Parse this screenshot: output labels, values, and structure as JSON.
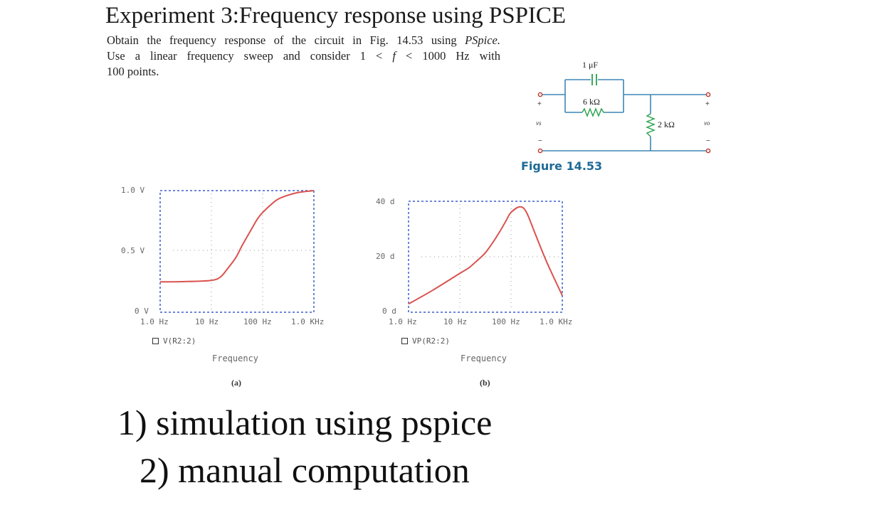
{
  "title": "Experiment 3:Frequency response using PSPICE",
  "problem": {
    "line1": "Obtain the frequency response of the circuit in Fig. 14.53 using ",
    "line1_em": "PSpice.",
    "line2a": "Use a linear frequency sweep and consider 1 < ",
    "line2_f": "f",
    "line2b": " < 1000 Hz with",
    "line3": "100 points."
  },
  "figure": {
    "caption": "Figure 14.53",
    "capacitor_label": "1 μF",
    "resistor_series_label": "6 kΩ",
    "resistor_shunt_label": "2 kΩ",
    "input_label": "vs",
    "output_label": "vo",
    "plus": "+",
    "minus": "−"
  },
  "plots": [
    {
      "id": "a",
      "sublabel": "(a)",
      "legend": "V(R2:2)",
      "xlabel": "Frequency",
      "y_ticks": [
        "1.0 V",
        "0.5 V",
        "0 V"
      ],
      "x_ticks": [
        "1.0 Hz",
        "10 Hz",
        "100 Hz",
        "1.0 KHz"
      ]
    },
    {
      "id": "b",
      "sublabel": "(b)",
      "legend": "VP(R2:2)",
      "xlabel": "Frequency",
      "y_ticks": [
        "40 d",
        "20 d",
        "0 d"
      ],
      "x_ticks": [
        "1.0 Hz",
        "10 Hz",
        "100 Hz",
        "1.0 KHz"
      ]
    }
  ],
  "chart_data": [
    {
      "type": "line",
      "title": "",
      "xlabel": "Frequency",
      "ylabel": "",
      "x_scale": "log",
      "xlim": [
        1,
        1000
      ],
      "ylim": [
        0,
        1.0
      ],
      "series": [
        {
          "name": "V(R2:2)",
          "x": [
            1,
            3,
            10,
            15,
            20,
            30,
            40,
            60,
            80,
            100,
            150,
            200,
            300,
            500,
            1000
          ],
          "y": [
            0.25,
            0.252,
            0.262,
            0.29,
            0.35,
            0.45,
            0.55,
            0.68,
            0.77,
            0.82,
            0.89,
            0.93,
            0.96,
            0.985,
            1.0
          ]
        }
      ],
      "color": "#d9534f"
    },
    {
      "type": "line",
      "title": "",
      "xlabel": "Frequency",
      "ylabel": "",
      "x_scale": "log",
      "xlim": [
        1,
        1000
      ],
      "ylim": [
        0,
        40
      ],
      "series": [
        {
          "name": "VP(R2:2)",
          "x": [
            1,
            3,
            10,
            15,
            20,
            30,
            40,
            60,
            80,
            100,
            150,
            200,
            300,
            500,
            1000
          ],
          "y": [
            3,
            8,
            14,
            16,
            18,
            21,
            24,
            29,
            33,
            36,
            38,
            36,
            28,
            18,
            6
          ]
        }
      ],
      "color": "#d9534f"
    }
  ],
  "tasks": {
    "task1": "1) simulation using pspice",
    "task2": "2) manual computation"
  }
}
